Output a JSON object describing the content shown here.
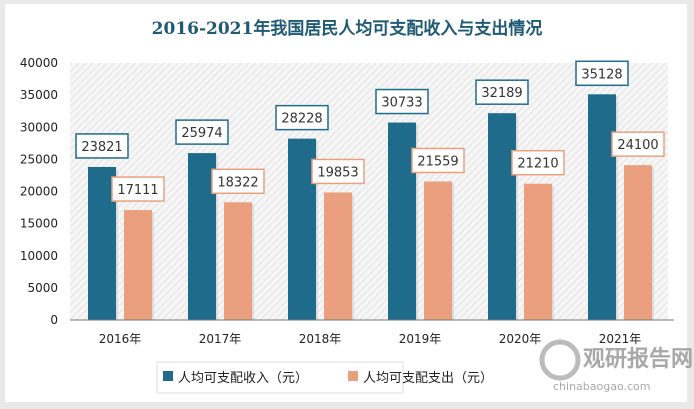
{
  "chart_data": {
    "type": "bar",
    "title": "2016-2021年我国居民人均可支配收入与支出情况",
    "categories": [
      "2016年",
      "2017年",
      "2018年",
      "2019年",
      "2020年",
      "2021年"
    ],
    "series": [
      {
        "name": "人均可支配收入（元）",
        "values": [
          23821,
          25974,
          28228,
          30733,
          32189,
          35128
        ],
        "color": "#1f6b8c"
      },
      {
        "name": "人均可支配支出（元）",
        "values": [
          17111,
          18322,
          19853,
          21559,
          21210,
          24100
        ],
        "color": "#eaa07f"
      }
    ],
    "ylim": [
      0,
      40000
    ],
    "yticks": [
      0,
      5000,
      10000,
      15000,
      20000,
      25000,
      30000,
      35000,
      40000
    ],
    "grid": false,
    "legend": "bottom",
    "data_labels": true
  },
  "watermark": {
    "name": "观研报告网",
    "url": "chinabaogao.com"
  }
}
